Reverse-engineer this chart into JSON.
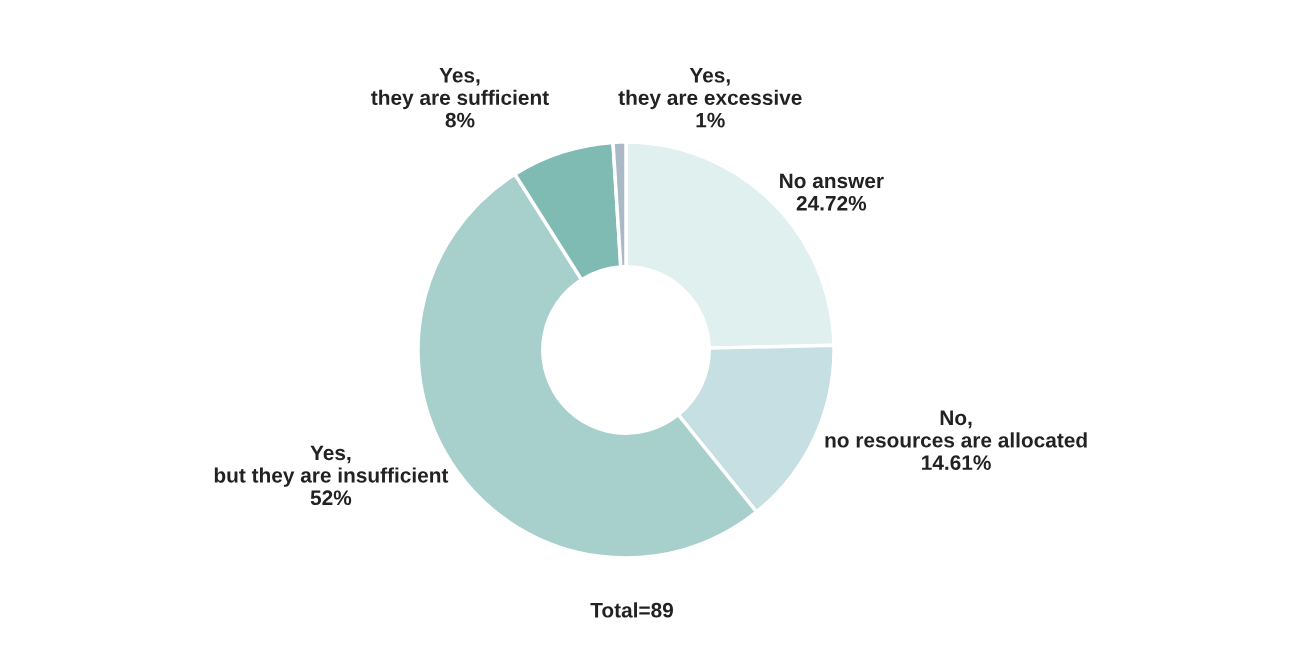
{
  "chart_data": {
    "type": "donut",
    "categories": [
      "No answer",
      "No,\nno resources are allocated",
      "Yes,\nbut they are insufficient",
      "Yes,\nthey are sufficient",
      "Yes,\nthey are excessive"
    ],
    "values": [
      24.72,
      14.61,
      52,
      8,
      1
    ],
    "value_labels": [
      "24.72%",
      "14.61%",
      "52%",
      "8%",
      "1%"
    ],
    "colors": [
      "#e0f0ee",
      "#c5dfe3",
      "#a7cfcc",
      "#7fbbb3",
      "#a9b9c6"
    ],
    "annotations": [
      "Total=89"
    ],
    "legend": false
  }
}
